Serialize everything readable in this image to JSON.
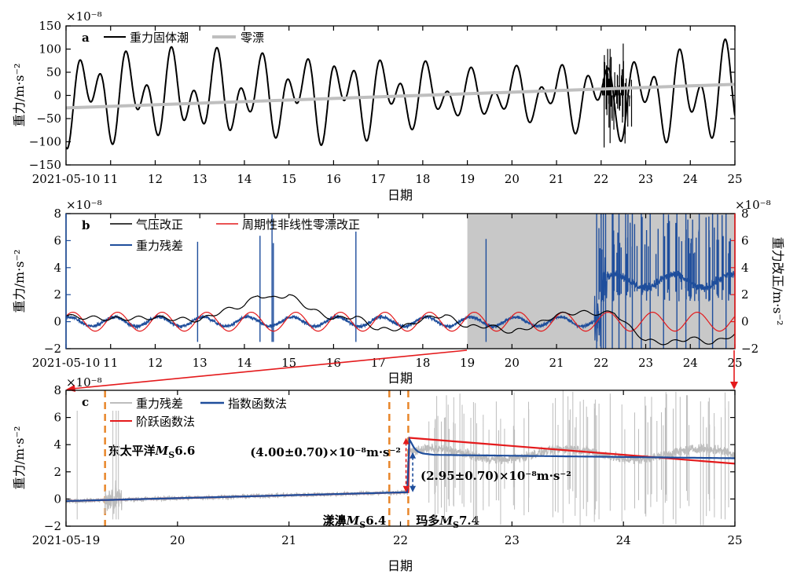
{
  "chart_data": [
    {
      "panel": "a",
      "type": "line",
      "xlabel": "日期",
      "ylabel": "重力/m·s⁻²",
      "y_exponent": "×10⁻⁸",
      "xlim": [
        10,
        25
      ],
      "ylim": [
        -150,
        150
      ],
      "x_start_label": "2021-05-10",
      "x_ticks": [
        10,
        11,
        12,
        13,
        14,
        15,
        16,
        17,
        18,
        19,
        20,
        21,
        22,
        23,
        24,
        25
      ],
      "x_tick_labels": [
        "2021-05-10",
        "11",
        "12",
        "13",
        "14",
        "15",
        "16",
        "17",
        "18",
        "19",
        "20",
        "21",
        "22",
        "23",
        "24",
        "25"
      ],
      "y_ticks": [
        -150,
        -100,
        -50,
        0,
        50,
        100,
        150
      ],
      "y_tick_labels": [
        "−150",
        "−100",
        "−50",
        "0",
        "50",
        "100",
        "150"
      ],
      "legend": [
        "重力固体潮",
        "零漂"
      ],
      "series": [
        {
          "name": "重力固体潮",
          "color": "#000000",
          "kind": "tide",
          "amplitude_envelope": [
            [
              10,
              115
            ],
            [
              14.5,
              100
            ],
            [
              16,
              110
            ],
            [
              17.5,
              90
            ],
            [
              19,
              60
            ],
            [
              20.5,
              70
            ],
            [
              22,
              95
            ],
            [
              23.5,
              110
            ],
            [
              25,
              125
            ]
          ]
        },
        {
          "name": "零漂",
          "color": "#bfbfbf",
          "x": [
            10,
            25
          ],
          "values": [
            -27,
            24
          ]
        }
      ]
    },
    {
      "panel": "b",
      "type": "line",
      "xlabel": "日期",
      "ylabel": "重力/m·s⁻²",
      "y_exponent": "×10⁻⁸",
      "ylabel_right": "重力改正/m·s⁻²",
      "y_exponent_right": "×10⁻⁸",
      "xlim": [
        10,
        25
      ],
      "ylim": [
        -2,
        8
      ],
      "ylim_right": [
        -2,
        8
      ],
      "shaded_region": [
        19,
        25
      ],
      "x_ticks": [
        10,
        11,
        12,
        13,
        14,
        15,
        16,
        17,
        18,
        19,
        20,
        21,
        22,
        23,
        24,
        25
      ],
      "x_tick_labels": [
        "2021-05-10",
        "11",
        "12",
        "13",
        "14",
        "15",
        "16",
        "17",
        "18",
        "19",
        "20",
        "21",
        "22",
        "23",
        "24",
        "25"
      ],
      "y_ticks": [
        -2,
        0,
        2,
        4,
        6,
        8
      ],
      "y_tick_labels": [
        "−2",
        "0",
        "2",
        "4",
        "6",
        "8"
      ],
      "legend": [
        "气压改正",
        "周期性非线性零漂改正",
        "重力残差"
      ],
      "series": [
        {
          "name": "气压改正",
          "color": "#000000",
          "x": [
            10,
            11,
            12,
            13,
            13.5,
            14,
            14.3,
            14.6,
            15,
            15.5,
            16,
            16.5,
            17,
            17.5,
            18,
            18.5,
            19,
            19.5,
            20,
            20.5,
            21,
            21.5,
            22,
            22.3,
            22.6,
            23,
            23.5,
            24,
            24.5,
            25
          ],
          "values": [
            0.4,
            0.2,
            0.3,
            0.1,
            0.8,
            1.2,
            2.0,
            1.7,
            2.0,
            0.9,
            0.2,
            0.4,
            -0.6,
            -0.5,
            0.2,
            0.5,
            -0.4,
            -0.3,
            -0.8,
            -0.3,
            0.5,
            0.7,
            0.6,
            0.7,
            -0.3,
            -1.4,
            -1.6,
            -1.2,
            -1.6,
            -0.9
          ]
        },
        {
          "name": "周期性非线性零漂改正",
          "color": "#e41a1c",
          "kind": "sine",
          "amplitude": 0.7,
          "period_days": 1.0
        },
        {
          "name": "重力残差",
          "color": "#1f4e9c",
          "kind": "residual"
        }
      ]
    },
    {
      "panel": "c",
      "type": "line",
      "xlabel": "日期",
      "ylabel": "重力/m·s⁻²",
      "y_exponent": "×10⁻⁸",
      "xlim": [
        19,
        25
      ],
      "ylim": [
        -2,
        8
      ],
      "x_ticks": [
        19,
        20,
        21,
        22,
        23,
        24,
        25
      ],
      "x_tick_labels": [
        "2021-05-19",
        "20",
        "21",
        "22",
        "23",
        "24",
        "25"
      ],
      "y_ticks": [
        -2,
        0,
        2,
        4,
        6,
        8
      ],
      "y_tick_labels": [
        "−2",
        "0",
        "2",
        "4",
        "6",
        "8"
      ],
      "legend": [
        "重力残差",
        "指数函数法",
        "阶跃函数法"
      ],
      "series": [
        {
          "name": "重力残差",
          "color": "#bdbdbd",
          "kind": "residual"
        },
        {
          "name": "指数函数法",
          "color": "#1f4e9c",
          "x": [
            19,
            22.07,
            22.08,
            22.1,
            22.12,
            22.15,
            22.2,
            22.3,
            25
          ],
          "values": [
            -0.15,
            0.5,
            4.4,
            4.1,
            3.8,
            3.5,
            3.35,
            3.25,
            3.0
          ]
        },
        {
          "name": "阶跃函数法",
          "color": "#e41a1c",
          "x": [
            19,
            22.07,
            22.08,
            25
          ],
          "values": [
            -0.15,
            0.5,
            4.5,
            2.6
          ]
        }
      ],
      "events": [
        {
          "x": 19.35,
          "label": "东太平洋",
          "mag_symbol": "M",
          "mag_sub": "S",
          "mag_value": "6.6",
          "color": "#e8862a"
        },
        {
          "x": 21.9,
          "label": "漾濞",
          "mag_symbol": "M",
          "mag_sub": "S",
          "mag_value": "6.4",
          "color": "#e8862a"
        },
        {
          "x": 22.07,
          "label": "玛多",
          "mag_symbol": "M",
          "mag_sub": "S",
          "mag_value": "7.4",
          "color": "#e8862a"
        }
      ],
      "annotations": [
        {
          "text": "(4.00±0.70)×10⁻⁸m·s⁻²",
          "color": "#e41a1c"
        },
        {
          "text": "(2.95±0.70)×10⁻⁸m·s⁻²",
          "color": "#1f4e9c"
        }
      ]
    }
  ],
  "colors": {
    "tide": "#000000",
    "drift": "#bfbfbf",
    "pressure": "#000000",
    "periodic": "#e41a1c",
    "residual_b": "#1f4e9c",
    "residual_c": "#bdbdbd",
    "exp": "#1f4e9c",
    "step": "#e41a1c",
    "event_line": "#e8862a",
    "axis_blue": "#1f4e9c",
    "axis_red": "#e41a1c",
    "shade": "#c8c8c8",
    "link": "#e41a1c"
  }
}
